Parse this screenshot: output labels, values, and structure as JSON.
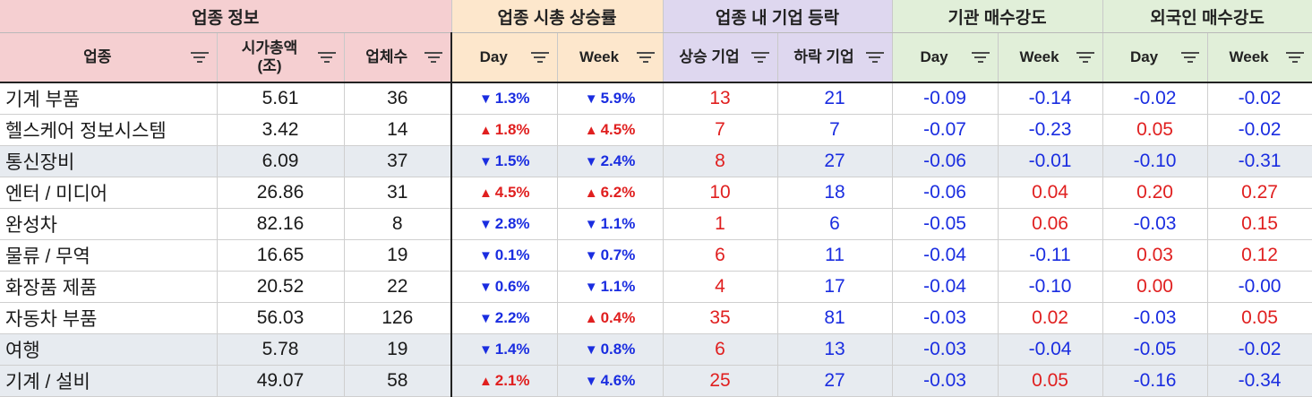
{
  "groups": {
    "info": "업종 정보",
    "cap": "업종 시총 상승률",
    "stocks": "업종 내 기업 등락",
    "inst": "기관 매수강도",
    "foreign": "외국인 매수강도"
  },
  "columns": {
    "sector": "업종",
    "mcap_line1": "시가총액",
    "mcap_line2": "(조)",
    "count": "업체수",
    "cap_day": "Day",
    "cap_week": "Week",
    "rise": "상승 기업",
    "fall": "하락 기업",
    "inst_day": "Day",
    "inst_week": "Week",
    "frg_day": "Day",
    "frg_week": "Week"
  },
  "colors": {
    "up": "#e01f1f",
    "down": "#1a2de0"
  },
  "icons": {
    "up": "▲",
    "down": "▼",
    "filter": "filter-icon"
  },
  "rows": [
    {
      "sector": "기계 부품",
      "mcap": "5.61",
      "count": "36",
      "cap_day": {
        "dir": "down",
        "val": "1.3%"
      },
      "cap_week": {
        "dir": "down",
        "val": "5.9%"
      },
      "rise": "13",
      "fall": "21",
      "inst_day": "-0.09",
      "inst_week": "-0.14",
      "frg_day": "-0.02",
      "frg_week": "-0.02"
    },
    {
      "sector": "헬스케어 정보시스템",
      "mcap": "3.42",
      "count": "14",
      "cap_day": {
        "dir": "up",
        "val": "1.8%"
      },
      "cap_week": {
        "dir": "up",
        "val": "4.5%"
      },
      "rise": "7",
      "fall": "7",
      "inst_day": "-0.07",
      "inst_week": "-0.23",
      "frg_day": "0.05",
      "frg_week": "-0.02"
    },
    {
      "sector": "통신장비",
      "mcap": "6.09",
      "count": "37",
      "cap_day": {
        "dir": "down",
        "val": "1.5%"
      },
      "cap_week": {
        "dir": "down",
        "val": "2.4%"
      },
      "rise": "8",
      "fall": "27",
      "inst_day": "-0.06",
      "inst_week": "-0.01",
      "frg_day": "-0.10",
      "frg_week": "-0.31"
    },
    {
      "sector": "엔터 / 미디어",
      "mcap": "26.86",
      "count": "31",
      "cap_day": {
        "dir": "up",
        "val": "4.5%"
      },
      "cap_week": {
        "dir": "up",
        "val": "6.2%"
      },
      "rise": "10",
      "fall": "18",
      "inst_day": "-0.06",
      "inst_week": "0.04",
      "frg_day": "0.20",
      "frg_week": "0.27"
    },
    {
      "sector": "완성차",
      "mcap": "82.16",
      "count": "8",
      "cap_day": {
        "dir": "down",
        "val": "2.8%"
      },
      "cap_week": {
        "dir": "down",
        "val": "1.1%"
      },
      "rise": "1",
      "fall": "6",
      "inst_day": "-0.05",
      "inst_week": "0.06",
      "frg_day": "-0.03",
      "frg_week": "0.15"
    },
    {
      "sector": "물류 / 무역",
      "mcap": "16.65",
      "count": "19",
      "cap_day": {
        "dir": "down",
        "val": "0.1%"
      },
      "cap_week": {
        "dir": "down",
        "val": "0.7%"
      },
      "rise": "6",
      "fall": "11",
      "inst_day": "-0.04",
      "inst_week": "-0.11",
      "frg_day": "0.03",
      "frg_week": "0.12"
    },
    {
      "sector": "화장품 제품",
      "mcap": "20.52",
      "count": "22",
      "cap_day": {
        "dir": "down",
        "val": "0.6%"
      },
      "cap_week": {
        "dir": "down",
        "val": "1.1%"
      },
      "rise": "4",
      "fall": "17",
      "inst_day": "-0.04",
      "inst_week": "-0.10",
      "frg_day": "0.00",
      "frg_week": "-0.00"
    },
    {
      "sector": "자동차 부품",
      "mcap": "56.03",
      "count": "126",
      "cap_day": {
        "dir": "down",
        "val": "2.2%"
      },
      "cap_week": {
        "dir": "up",
        "val": "0.4%"
      },
      "rise": "35",
      "fall": "81",
      "inst_day": "-0.03",
      "inst_week": "0.02",
      "frg_day": "-0.03",
      "frg_week": "0.05"
    },
    {
      "sector": "여행",
      "mcap": "5.78",
      "count": "19",
      "cap_day": {
        "dir": "down",
        "val": "1.4%"
      },
      "cap_week": {
        "dir": "down",
        "val": "0.8%"
      },
      "rise": "6",
      "fall": "13",
      "inst_day": "-0.03",
      "inst_week": "-0.04",
      "frg_day": "-0.05",
      "frg_week": "-0.02"
    },
    {
      "sector": "기계 / 설비",
      "mcap": "49.07",
      "count": "58",
      "cap_day": {
        "dir": "up",
        "val": "2.1%"
      },
      "cap_week": {
        "dir": "down",
        "val": "4.6%"
      },
      "rise": "25",
      "fall": "27",
      "inst_day": "-0.03",
      "inst_week": "0.05",
      "frg_day": "-0.16",
      "frg_week": "-0.34"
    }
  ],
  "shaded_rows": [
    2,
    8,
    9
  ]
}
